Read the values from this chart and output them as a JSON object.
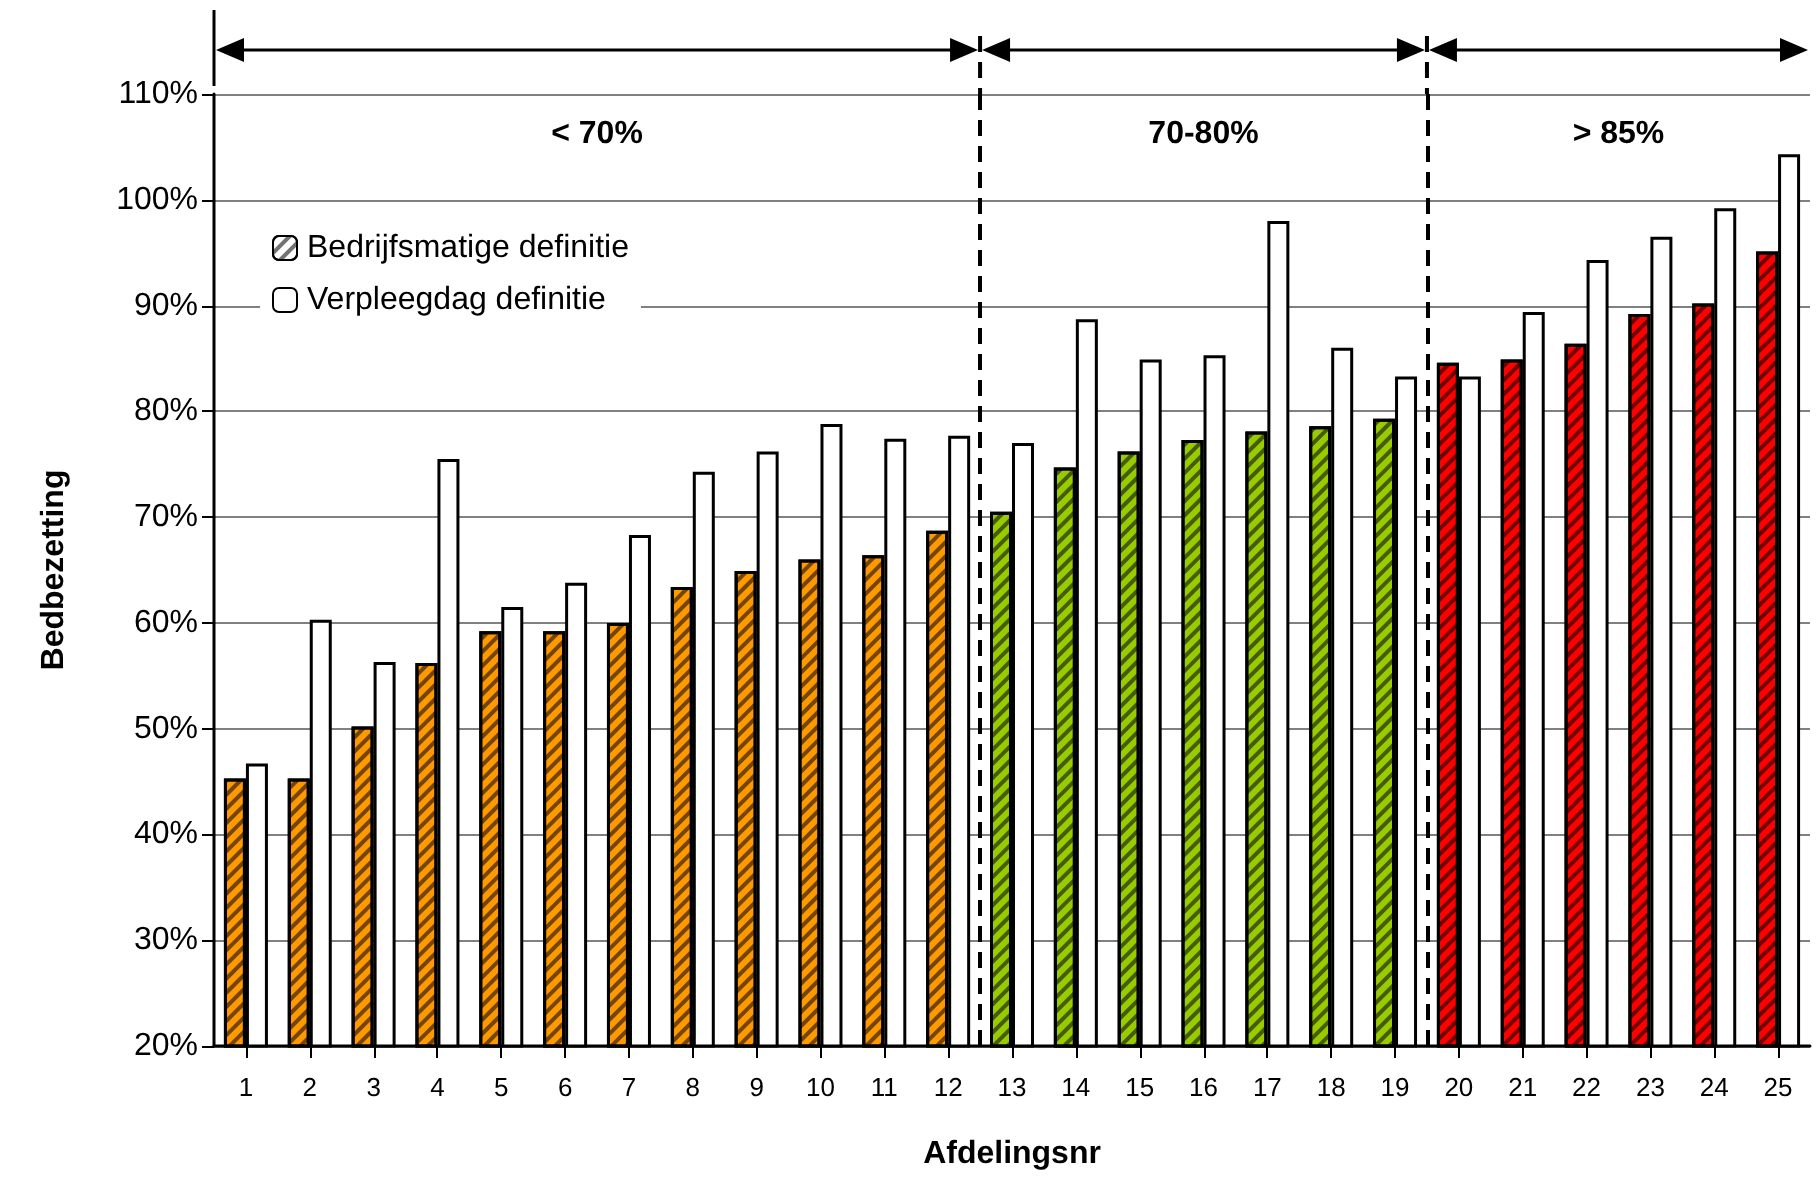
{
  "chart_data": {
    "type": "bar",
    "xlabel": "Afdelingsnr",
    "ylabel": "Bedbezetting",
    "x": [
      1,
      2,
      3,
      4,
      5,
      6,
      7,
      8,
      9,
      10,
      11,
      12,
      13,
      14,
      15,
      16,
      17,
      18,
      19,
      20,
      21,
      22,
      23,
      24,
      25
    ],
    "series": [
      {
        "name": "Bedrijfsmatige definitie",
        "colors": [
          "#ff9900",
          "#ff9900",
          "#ff9900",
          "#ff9900",
          "#ff9900",
          "#ff9900",
          "#ff9900",
          "#ff9900",
          "#ff9900",
          "#ff9900",
          "#ff9900",
          "#ff9900",
          "#99cc00",
          "#99cc00",
          "#99cc00",
          "#99cc00",
          "#99cc00",
          "#99cc00",
          "#99cc00",
          "#ff0000",
          "#ff0000",
          "#ff0000",
          "#ff0000",
          "#ff0000",
          "#ff0000"
        ],
        "values": [
          45.3,
          45.3,
          50.2,
          56.2,
          59.2,
          59.2,
          60,
          63.4,
          64.9,
          66,
          66.4,
          68.7,
          70.5,
          74.7,
          76.2,
          77.3,
          78.1,
          78.6,
          79.3,
          84.6,
          84.9,
          86.4,
          89.2,
          90.2,
          95.1
        ]
      },
      {
        "name": "Verpleegdag definitie",
        "color": "#ffffff",
        "values": [
          46.7,
          60.3,
          56.3,
          75.5,
          61.5,
          63.8,
          68.3,
          74.3,
          76.2,
          78.8,
          77.4,
          77.7,
          77,
          88.7,
          84.9,
          85.3,
          98,
          86,
          83.3,
          83.3,
          89.4,
          94.3,
          96.5,
          99.2,
          104.3
        ]
      }
    ],
    "xlim": [
      0.5,
      25.5
    ],
    "xticks": [
      1,
      2,
      3,
      4,
      5,
      6,
      7,
      8,
      9,
      10,
      11,
      12,
      13,
      14,
      15,
      16,
      17,
      18,
      19,
      20,
      21,
      22,
      23,
      24,
      25
    ],
    "ylim": [
      20,
      110
    ],
    "yticks": [
      {
        "value": 20,
        "label": "20%"
      },
      {
        "value": 30,
        "label": "30%"
      },
      {
        "value": 40,
        "label": "40%"
      },
      {
        "value": 50,
        "label": "50%"
      },
      {
        "value": 60,
        "label": "60%"
      },
      {
        "value": 70,
        "label": "70%"
      },
      {
        "value": 80,
        "label": "80%"
      },
      {
        "value": 90,
        "label": "90%"
      },
      {
        "value": 100,
        "label": "100%"
      },
      {
        "value": 110,
        "label": "110%"
      }
    ],
    "grid": "y",
    "legend": "top left",
    "ref_lines": [
      {
        "axis": "x",
        "value": 12.5,
        "line_style": "dashed"
      },
      {
        "axis": "x",
        "value": 19.5,
        "line_style": "dashed"
      }
    ],
    "annotations": [
      "< 70%",
      "70-80%",
      "> 85%"
    ]
  }
}
